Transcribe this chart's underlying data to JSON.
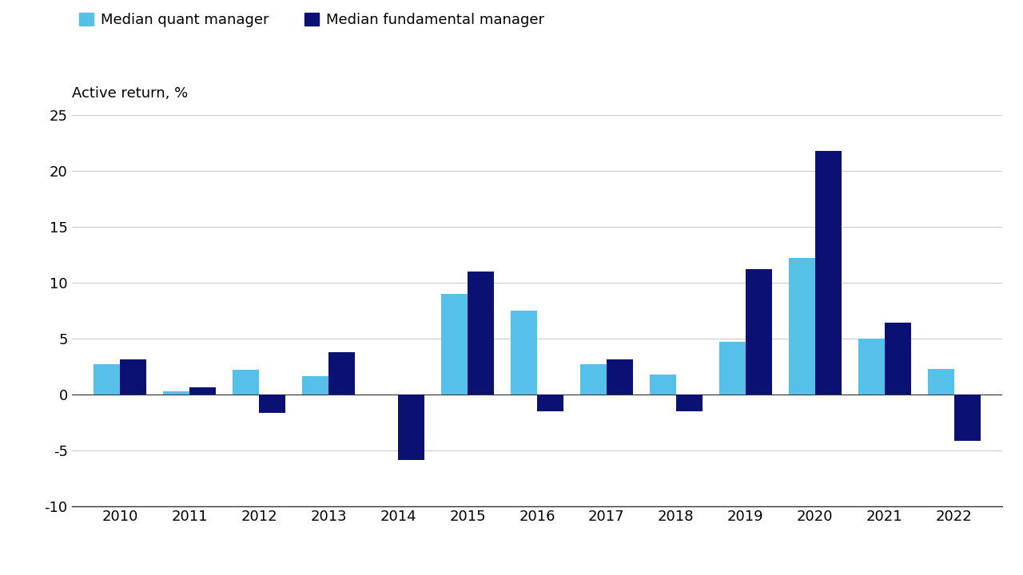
{
  "years": [
    2010,
    2011,
    2012,
    2013,
    2014,
    2015,
    2016,
    2017,
    2018,
    2019,
    2020,
    2021,
    2022
  ],
  "quant": [
    2.7,
    0.3,
    2.2,
    1.6,
    0.0,
    9.0,
    7.5,
    2.7,
    1.8,
    4.7,
    12.2,
    5.0,
    2.3
  ],
  "fundamental": [
    3.1,
    0.6,
    -1.7,
    3.8,
    -5.9,
    11.0,
    -1.5,
    3.1,
    -1.5,
    11.2,
    21.8,
    6.4,
    -4.2
  ],
  "quant_color": "#56C1E8",
  "fundamental_color": "#0A1172",
  "background_color": "#FFFFFF",
  "ylabel": "Active return, %",
  "ylim": [
    -10,
    25
  ],
  "yticks": [
    -10,
    -5,
    0,
    5,
    10,
    15,
    20,
    25
  ],
  "legend_quant": "Median quant manager",
  "legend_fundamental": "Median fundamental manager",
  "bar_width": 0.38,
  "grid_color": "#CCCCCC",
  "spine_color": "#333333",
  "tick_fontsize": 13,
  "legend_fontsize": 13,
  "ylabel_fontsize": 13
}
